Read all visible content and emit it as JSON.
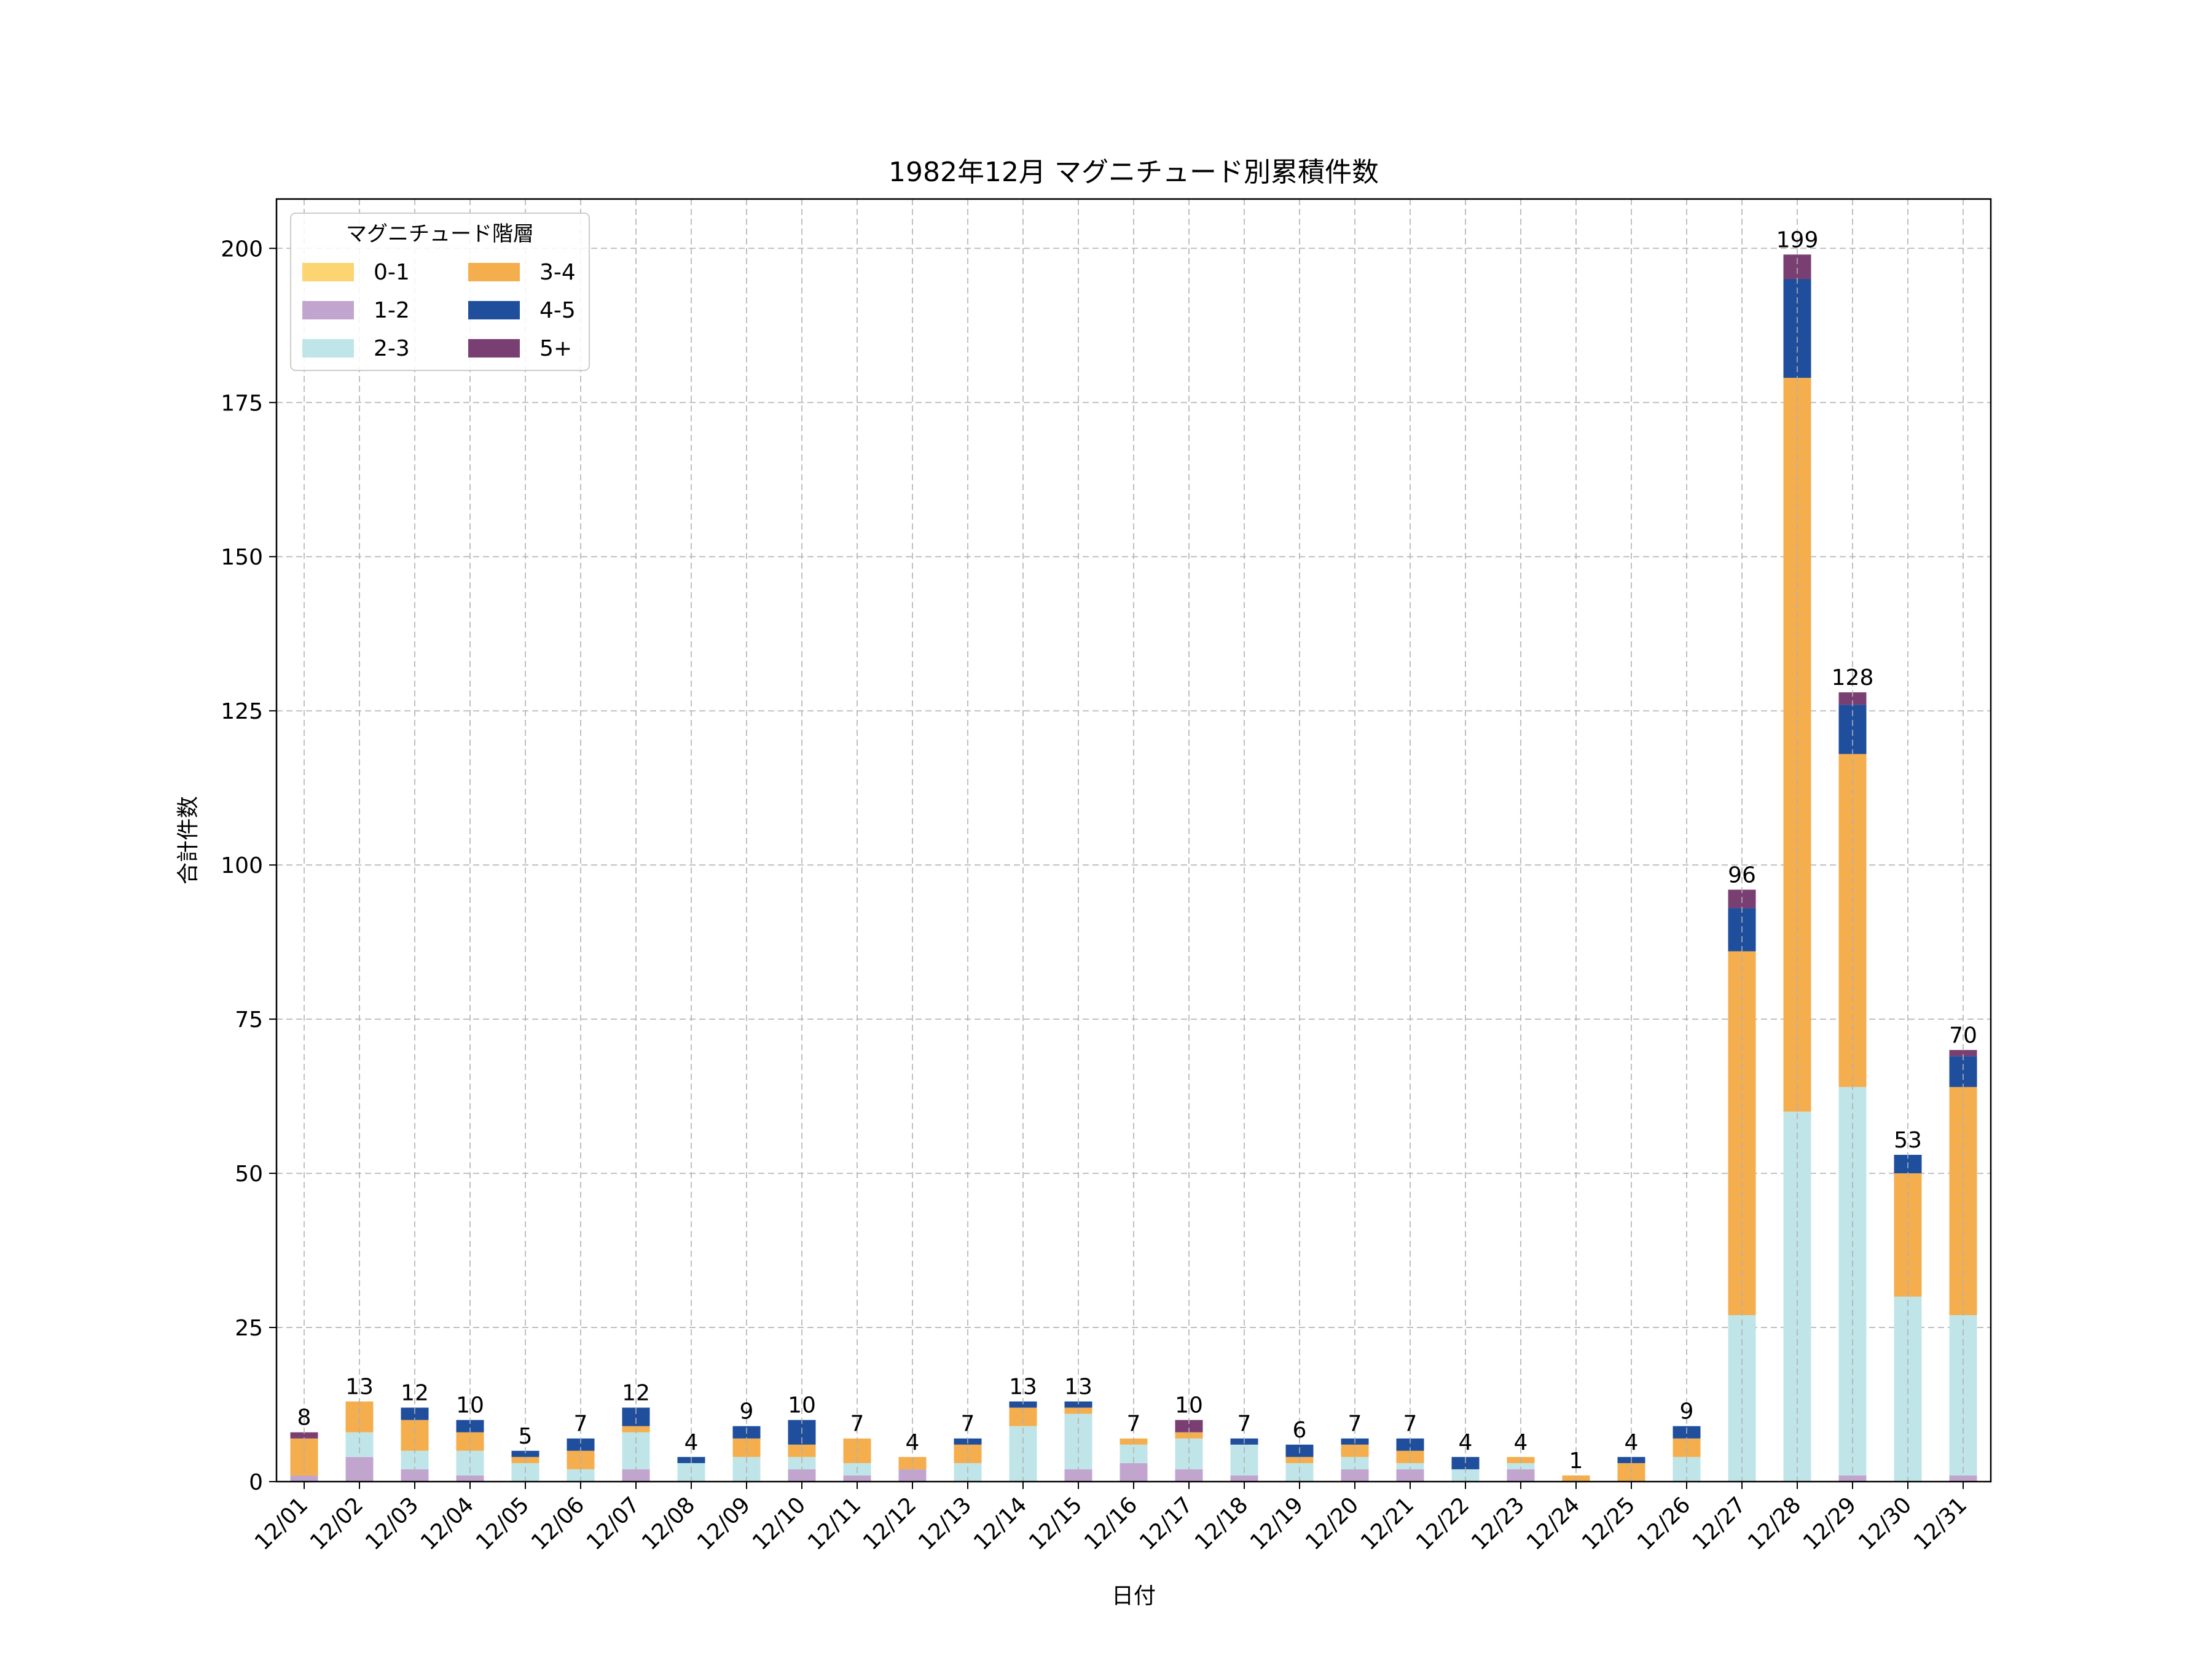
{
  "chart_data": {
    "type": "bar",
    "stacked": true,
    "title": "1982年12月 マグニチュード別累積件数",
    "xlabel": "日付",
    "ylabel": "合計件数",
    "ylim": [
      0,
      208
    ],
    "yticks": [
      0,
      25,
      50,
      75,
      100,
      125,
      150,
      175,
      200
    ],
    "grid": true,
    "legend": {
      "title": "マグニチュード階層",
      "placement": "top-left",
      "columns": 2
    },
    "categories": [
      "12/01",
      "12/02",
      "12/03",
      "12/04",
      "12/05",
      "12/06",
      "12/07",
      "12/08",
      "12/09",
      "12/10",
      "12/11",
      "12/12",
      "12/13",
      "12/14",
      "12/15",
      "12/16",
      "12/17",
      "12/18",
      "12/19",
      "12/20",
      "12/21",
      "12/22",
      "12/23",
      "12/24",
      "12/25",
      "12/26",
      "12/27",
      "12/28",
      "12/29",
      "12/30",
      "12/31"
    ],
    "series": [
      {
        "name": "0-1",
        "color": "#fcd471",
        "values": [
          0,
          0,
          0,
          0,
          0,
          0,
          0,
          0,
          0,
          0,
          0,
          0,
          0,
          0,
          0,
          0,
          0,
          0,
          0,
          0,
          0,
          0,
          0,
          0,
          0,
          0,
          0,
          0,
          0,
          0,
          0
        ]
      },
      {
        "name": "1-2",
        "color": "#c2a5cf",
        "values": [
          1,
          4,
          2,
          1,
          0,
          0,
          2,
          0,
          0,
          2,
          1,
          2,
          0,
          0,
          2,
          3,
          2,
          1,
          0,
          2,
          2,
          0,
          2,
          0,
          0,
          0,
          0,
          0,
          1,
          0,
          1
        ]
      },
      {
        "name": "2-3",
        "color": "#c0e5e8",
        "values": [
          0,
          4,
          3,
          4,
          3,
          2,
          6,
          3,
          4,
          2,
          2,
          0,
          3,
          9,
          9,
          3,
          5,
          5,
          3,
          2,
          1,
          2,
          1,
          0,
          0,
          4,
          27,
          60,
          63,
          30,
          26
        ]
      },
      {
        "name": "3-4",
        "color": "#f4ae4d",
        "values": [
          6,
          5,
          5,
          3,
          1,
          3,
          1,
          0,
          3,
          2,
          4,
          2,
          3,
          3,
          1,
          1,
          1,
          0,
          1,
          2,
          2,
          0,
          1,
          1,
          3,
          3,
          59,
          119,
          54,
          20,
          37
        ]
      },
      {
        "name": "4-5",
        "color": "#1f4e9c",
        "values": [
          0,
          0,
          2,
          2,
          1,
          2,
          3,
          1,
          2,
          4,
          0,
          0,
          1,
          1,
          1,
          0,
          0,
          1,
          2,
          1,
          2,
          2,
          0,
          0,
          1,
          2,
          7,
          16,
          8,
          3,
          5
        ]
      },
      {
        "name": "5+",
        "color": "#7a3f72",
        "values": [
          1,
          0,
          0,
          0,
          0,
          0,
          0,
          0,
          0,
          0,
          0,
          0,
          0,
          0,
          0,
          0,
          2,
          0,
          0,
          0,
          0,
          0,
          0,
          0,
          0,
          0,
          3,
          4,
          2,
          0,
          1
        ]
      }
    ],
    "totals": [
      8,
      13,
      12,
      10,
      5,
      7,
      12,
      4,
      9,
      10,
      7,
      4,
      7,
      13,
      13,
      7,
      10,
      7,
      6,
      7,
      7,
      4,
      4,
      1,
      4,
      9,
      96,
      199,
      128,
      53,
      70
    ]
  }
}
